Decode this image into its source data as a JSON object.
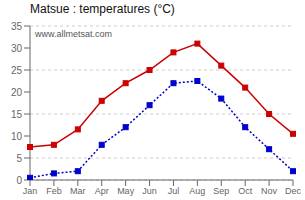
{
  "chart_data": {
    "type": "line",
    "title": "Matsue : temperatures (°C)",
    "categories": [
      "Jan",
      "Feb",
      "Mar",
      "Apr",
      "May",
      "Jun",
      "Jul",
      "Aug",
      "Sep",
      "Oct",
      "Nov",
      "Dec"
    ],
    "series": [
      {
        "color": "#cc0000",
        "marker": "square",
        "line_style": "solid",
        "values": [
          7.5,
          8.0,
          11.5,
          18.0,
          22.0,
          25.0,
          29.0,
          31.0,
          26.0,
          21.0,
          15.0,
          10.5
        ]
      },
      {
        "color": "#0000cc",
        "marker": "square",
        "line_style": "dotted",
        "values": [
          0.5,
          1.5,
          2.0,
          8.0,
          12.0,
          17.0,
          22.0,
          22.5,
          18.5,
          12.0,
          7.0,
          2.0
        ]
      }
    ],
    "ylim": [
      0,
      35
    ],
    "yticks": [
      0,
      5,
      10,
      15,
      20,
      25,
      30,
      35
    ],
    "grid": "y",
    "annotations": [
      "www.allmetsat.com"
    ]
  }
}
